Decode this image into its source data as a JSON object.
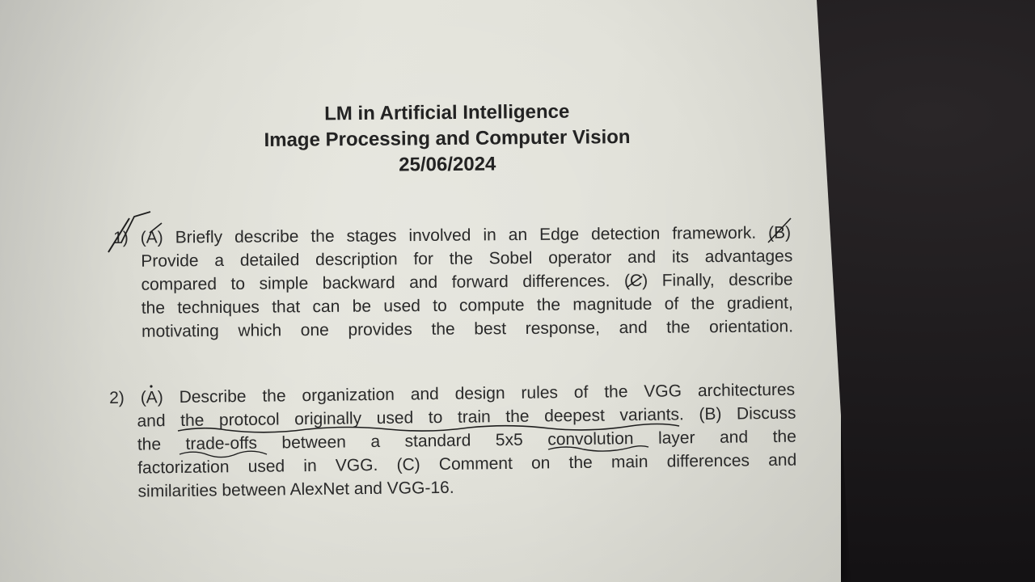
{
  "document": {
    "header": {
      "line1": "LM in Artificial Intelligence",
      "line2": "Image Processing and Computer Vision",
      "date": "25/06/2024"
    },
    "questions": [
      {
        "lines": [
          "1) (A) Briefly describe the stages involved in an Edge detection framework. (B)",
          "Provide a detailed description for the Sobel operator and its advantages",
          "compared to simple backward and forward differences. (C) Finally, describe",
          "the techniques that can be used to compute the magnitude of the gradient,",
          "motivating which one provides the best response, and the orientation."
        ]
      },
      {
        "lines": [
          "2) (A) Describe the organization and design rules of the VGG architectures",
          "and the protocol originally used to train the deepest variants. (B) Discuss",
          "the trade-offs between a standard 5x5 convolution layer and the",
          "factorization used in VGG. (C) Comment on the main differences and",
          "similarities between AlexNet and VGG-16."
        ]
      }
    ]
  }
}
